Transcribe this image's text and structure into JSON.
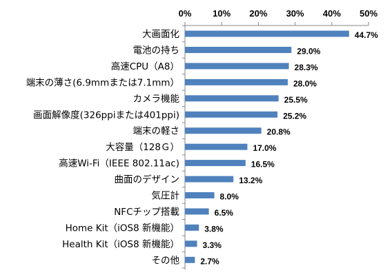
{
  "chart_data": {
    "type": "bar",
    "orientation": "horizontal",
    "categories": [
      "大画面化",
      "電池の持ち",
      "高速CPU（A8）",
      "端末の薄さ(6.9mmまたは7.1mm）",
      "カメラ機能",
      "画面解像度(326ppiまたは401ppi)",
      "端末の軽さ",
      "大容量（128Ｇ）",
      "高速Wi-Fi（IEEE 802.11ac)",
      "曲面のデザイン",
      "気圧計",
      "NFCチップ搭載",
      "Home Kit（iOS8 新機能）",
      "Health Kit（iOS8 新機能）",
      "その他"
    ],
    "values": [
      44.7,
      29.0,
      28.3,
      28.0,
      25.5,
      25.2,
      20.8,
      17.0,
      16.5,
      13.2,
      8.0,
      6.5,
      3.8,
      3.3,
      2.7
    ],
    "value_labels": [
      "44.7%",
      "29.0%",
      "28.3%",
      "28.0%",
      "25.5%",
      "25.2%",
      "20.8%",
      "17.0%",
      "16.5%",
      "13.2%",
      "8.0%",
      "6.5%",
      "3.8%",
      "3.3%",
      "2.7%"
    ],
    "x_ticks": [
      0,
      10,
      20,
      30,
      40,
      50
    ],
    "x_tick_labels": [
      "0%",
      "10%",
      "20%",
      "30%",
      "40%",
      "50%"
    ],
    "xlim": [
      0,
      50
    ],
    "axis_position": "top",
    "grid": false,
    "legend": false,
    "bar_color": "#4f81bd",
    "axis_color": "#868686"
  }
}
